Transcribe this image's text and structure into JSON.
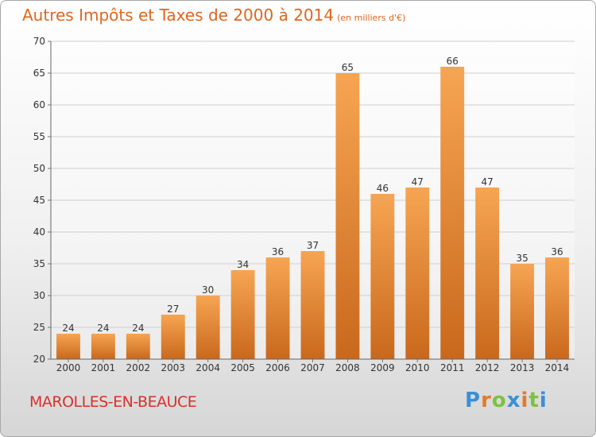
{
  "title_main": "Autres Impôts et Taxes de 2000 à 2014",
  "title_unit": "(en milliers d'€)",
  "city": "MAROLLES-EN-BEAUCE",
  "logo": {
    "letters": [
      "P",
      "r",
      "o",
      "x",
      "i",
      "t",
      "i"
    ],
    "colors": [
      "#3a8fd8",
      "#e37a2c",
      "#7cc143",
      "#3a8fd8",
      "#e37a2c",
      "#7cc143",
      "#3a8fd8"
    ]
  },
  "colors": {
    "bar_top": "#f6a553",
    "bar_bottom": "#c9681c",
    "grid": "#cfcfcf",
    "title": "#e0661e",
    "city": "#d8312b"
  },
  "chart_data": {
    "type": "bar",
    "title": "Autres Impôts et Taxes de 2000 à 2014",
    "subtitle": "(en milliers d'€)",
    "categories": [
      "2000",
      "2001",
      "2002",
      "2003",
      "2004",
      "2005",
      "2006",
      "2007",
      "2008",
      "2009",
      "2010",
      "2011",
      "2012",
      "2013",
      "2014"
    ],
    "values": [
      24,
      24,
      24,
      27,
      30,
      34,
      36,
      37,
      65,
      46,
      47,
      66,
      47,
      35,
      36
    ],
    "xlabel": "",
    "ylabel": "",
    "ylim": [
      20,
      70
    ],
    "yticks": [
      20,
      25,
      30,
      35,
      40,
      45,
      50,
      55,
      60,
      65,
      70
    ],
    "grid": true,
    "data_labels": true
  }
}
